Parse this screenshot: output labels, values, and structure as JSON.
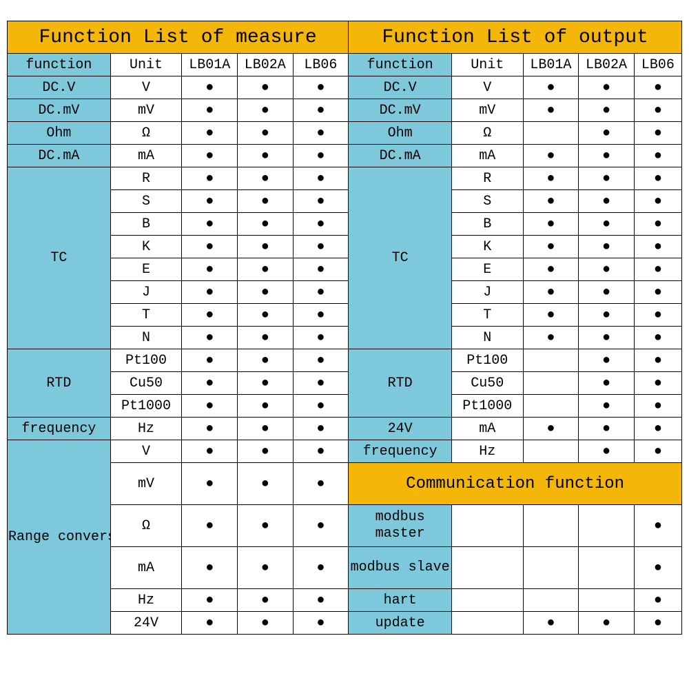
{
  "colors": {
    "title_bg": "#f4b608",
    "header_bg": "#7dc8da",
    "border": "#000000",
    "dot": "#000000",
    "background": "#ffffff"
  },
  "typography": {
    "font_family": "Courier New, monospace",
    "title_fontsize": 28,
    "subtitle_fontsize": 24,
    "cell_fontsize": 20
  },
  "titles": {
    "measure": "Function List of measure",
    "output": "Function List of output",
    "comm": "Communication function"
  },
  "headers": {
    "function": "function",
    "unit": "Unit",
    "m1": "LB01A",
    "m2": "LB02A",
    "m3": "LB06"
  },
  "labels": {
    "dcv": "DC.V",
    "dcmv": "DC.mV",
    "ohm": "Ohm",
    "dcma": "DC.mA",
    "tc": "TC",
    "rtd": "RTD",
    "freq": "frequency",
    "range": "Range conversion",
    "v24": "24V",
    "modbus_master": "modbus master",
    "modbus_slave": "modbus slave",
    "hart": "hart",
    "update": "update"
  },
  "units": {
    "V": "V",
    "mV": "mV",
    "ohm": "Ω",
    "mA": "mA",
    "R": "R",
    "S": "S",
    "B": "B",
    "K": "K",
    "E": "E",
    "J": "J",
    "T": "T",
    "N": "N",
    "Pt100": "Pt100",
    "Cu50": "Cu50",
    "Pt1000": "Pt1000",
    "Hz": "Hz",
    "v24": "24V"
  },
  "measure_rows": [
    {
      "fn": "dcv",
      "unit": "V",
      "span": 1,
      "marks": [
        1,
        1,
        1
      ]
    },
    {
      "fn": "dcmv",
      "unit": "mV",
      "span": 1,
      "marks": [
        1,
        1,
        1
      ]
    },
    {
      "fn": "ohm",
      "unit": "ohm",
      "span": 1,
      "marks": [
        1,
        1,
        1
      ]
    },
    {
      "fn": "dcma",
      "unit": "mA",
      "span": 1,
      "marks": [
        1,
        1,
        1
      ]
    },
    {
      "fn": "tc",
      "unit": "R",
      "span": 8,
      "marks": [
        1,
        1,
        1
      ]
    },
    {
      "unit": "S",
      "marks": [
        1,
        1,
        1
      ]
    },
    {
      "unit": "B",
      "marks": [
        1,
        1,
        1
      ]
    },
    {
      "unit": "K",
      "marks": [
        1,
        1,
        1
      ]
    },
    {
      "unit": "E",
      "marks": [
        1,
        1,
        1
      ]
    },
    {
      "unit": "J",
      "marks": [
        1,
        1,
        1
      ]
    },
    {
      "unit": "T",
      "marks": [
        1,
        1,
        1
      ]
    },
    {
      "unit": "N",
      "marks": [
        1,
        1,
        1
      ]
    },
    {
      "fn": "rtd",
      "unit": "Pt100",
      "span": 3,
      "marks": [
        1,
        1,
        1
      ]
    },
    {
      "unit": "Cu50",
      "marks": [
        1,
        1,
        1
      ]
    },
    {
      "unit": "Pt1000",
      "marks": [
        1,
        1,
        1
      ]
    },
    {
      "fn": "freq",
      "unit": "Hz",
      "span": 1,
      "marks": [
        1,
        1,
        1
      ]
    },
    {
      "fn": "range",
      "unit": "V",
      "span": 6,
      "marks": [
        1,
        1,
        1
      ]
    },
    {
      "unit": "mV",
      "marks": [
        1,
        1,
        1
      ],
      "tall": 1
    },
    {
      "unit": "ohm",
      "marks": [
        1,
        1,
        1
      ],
      "tall": 1
    },
    {
      "unit": "mA",
      "marks": [
        1,
        1,
        1
      ],
      "tall": 1
    },
    {
      "unit": "Hz",
      "marks": [
        1,
        1,
        1
      ]
    },
    {
      "unit": "v24",
      "marks": [
        1,
        1,
        1
      ]
    }
  ],
  "output_rows": [
    {
      "fn": "dcv",
      "unit": "V",
      "span": 1,
      "marks": [
        1,
        1,
        1
      ]
    },
    {
      "fn": "dcmv",
      "unit": "mV",
      "span": 1,
      "marks": [
        1,
        1,
        1
      ]
    },
    {
      "fn": "ohm",
      "unit": "ohm",
      "span": 1,
      "marks": [
        0,
        1,
        1
      ]
    },
    {
      "fn": "dcma",
      "unit": "mA",
      "span": 1,
      "marks": [
        1,
        1,
        1
      ]
    },
    {
      "fn": "tc",
      "unit": "R",
      "span": 8,
      "marks": [
        1,
        1,
        1
      ]
    },
    {
      "unit": "S",
      "marks": [
        1,
        1,
        1
      ]
    },
    {
      "unit": "B",
      "marks": [
        1,
        1,
        1
      ]
    },
    {
      "unit": "K",
      "marks": [
        1,
        1,
        1
      ]
    },
    {
      "unit": "E",
      "marks": [
        1,
        1,
        1
      ]
    },
    {
      "unit": "J",
      "marks": [
        1,
        1,
        1
      ]
    },
    {
      "unit": "T",
      "marks": [
        1,
        1,
        1
      ]
    },
    {
      "unit": "N",
      "marks": [
        1,
        1,
        1
      ]
    },
    {
      "fn": "rtd",
      "unit": "Pt100",
      "span": 3,
      "marks": [
        0,
        1,
        1
      ]
    },
    {
      "unit": "Cu50",
      "marks": [
        0,
        1,
        1
      ]
    },
    {
      "unit": "Pt1000",
      "marks": [
        0,
        1,
        1
      ]
    },
    {
      "fn": "v24",
      "unit": "mA",
      "span": 1,
      "marks": [
        1,
        1,
        1
      ]
    },
    {
      "fn": "freq",
      "unit": "Hz",
      "span": 1,
      "marks": [
        0,
        1,
        1
      ]
    }
  ],
  "comm_rows": [
    {
      "fn": "modbus_master",
      "marks": [
        0,
        0,
        1
      ],
      "tall": 1
    },
    {
      "fn": "modbus_slave",
      "marks": [
        0,
        0,
        1
      ],
      "tall": 1
    },
    {
      "fn": "hart",
      "marks": [
        0,
        0,
        1
      ]
    },
    {
      "fn": "update",
      "marks": [
        1,
        1,
        1
      ]
    }
  ]
}
